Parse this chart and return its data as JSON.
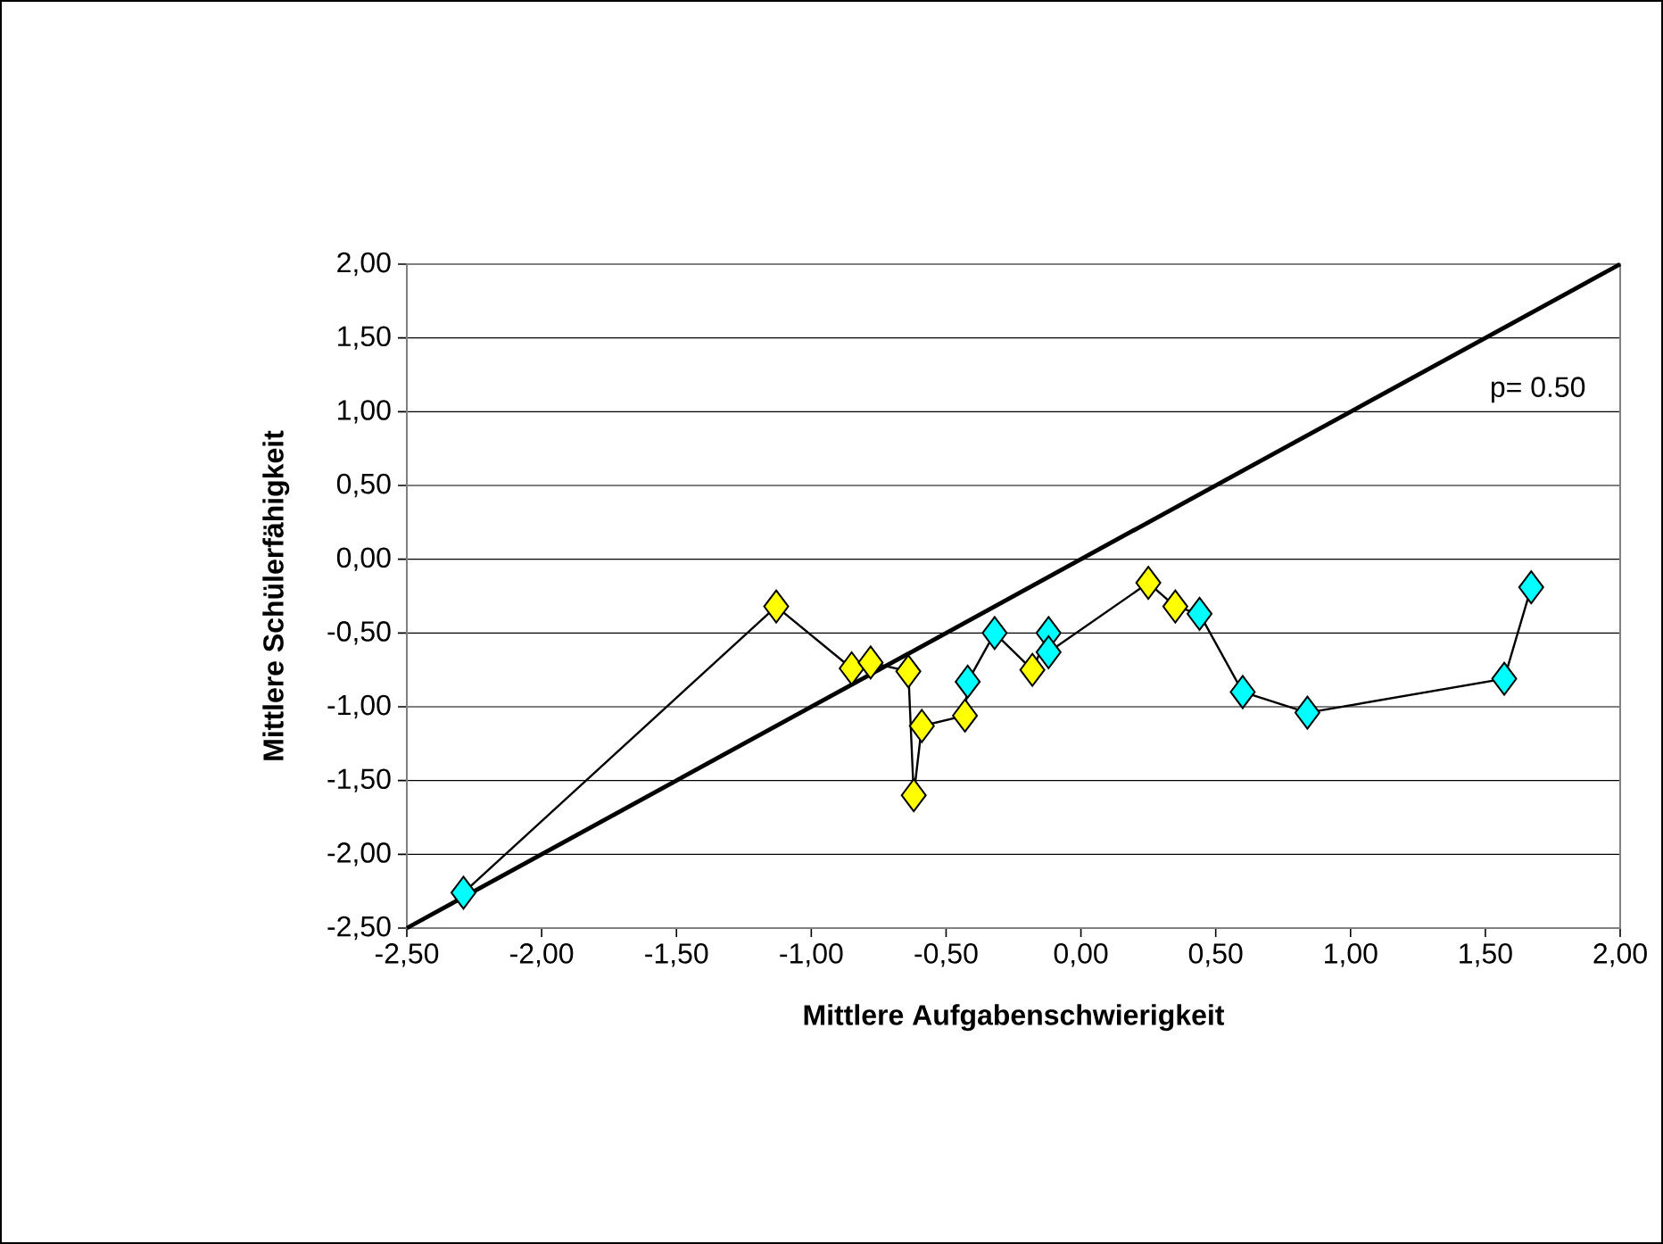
{
  "chart_data": {
    "type": "line",
    "xlabel": "Mittlere Aufgabenschwierigkeit",
    "ylabel": "Mittlere Schülerfähigkeit",
    "xlim": [
      -2.5,
      2.0
    ],
    "ylim": [
      -2.5,
      2.0
    ],
    "grid": "y",
    "xticks": [
      {
        "value": -2.5,
        "label": "-2,50"
      },
      {
        "value": -2.0,
        "label": "-2,00"
      },
      {
        "value": -1.5,
        "label": "-1,50"
      },
      {
        "value": -1.0,
        "label": "-1,00"
      },
      {
        "value": -0.5,
        "label": "-0,50"
      },
      {
        "value": 0.0,
        "label": "0,00"
      },
      {
        "value": 0.5,
        "label": "0,50"
      },
      {
        "value": 1.0,
        "label": "1,00"
      },
      {
        "value": 1.5,
        "label": "1,50"
      },
      {
        "value": 2.0,
        "label": "2,00"
      }
    ],
    "yticks": [
      {
        "value": -2.5,
        "label": "-2,50"
      },
      {
        "value": -2.0,
        "label": "-2,00"
      },
      {
        "value": -1.5,
        "label": "-1,50"
      },
      {
        "value": -1.0,
        "label": "-1,00"
      },
      {
        "value": -0.5,
        "label": "-0,50"
      },
      {
        "value": 0.0,
        "label": "0,00"
      },
      {
        "value": 0.5,
        "label": "0,50"
      },
      {
        "value": 1.0,
        "label": "1,00"
      },
      {
        "value": 1.5,
        "label": "1,50"
      },
      {
        "value": 2.0,
        "label": "2,00"
      }
    ],
    "series": [
      {
        "marker": "diamond",
        "color": "#000000",
        "x": [
          -2.29,
          -1.13,
          -0.85,
          -0.78,
          -0.64,
          -0.62,
          -0.59,
          -0.43,
          -0.42,
          -0.32,
          -0.18,
          -0.12,
          -0.12,
          0.25,
          0.35,
          0.44,
          0.6,
          0.84,
          1.57,
          1.67
        ],
        "values": [
          -2.26,
          -0.32,
          -0.74,
          -0.7,
          -0.76,
          -1.6,
          -1.13,
          -1.06,
          -0.83,
          -0.5,
          -0.75,
          -0.5,
          -0.63,
          -0.16,
          -0.32,
          -0.37,
          -0.9,
          -1.04,
          -0.81,
          -0.19
        ],
        "colors": [
          "#00ffff",
          "#ffff00",
          "#ffff00",
          "#ffff00",
          "#ffff00",
          "#ffff00",
          "#ffff00",
          "#ffff00",
          "#00ffff",
          "#00ffff",
          "#ffff00",
          "#00ffff",
          "#00ffff",
          "#ffff00",
          "#ffff00",
          "#00ffff",
          "#00ffff",
          "#00ffff",
          "#00ffff",
          "#00ffff"
        ]
      },
      {
        "name": "p= 0.50",
        "marker": "none",
        "color": "#000000",
        "x": [
          -2.5,
          2.0
        ],
        "values": [
          -2.5,
          2.0
        ]
      }
    ]
  }
}
